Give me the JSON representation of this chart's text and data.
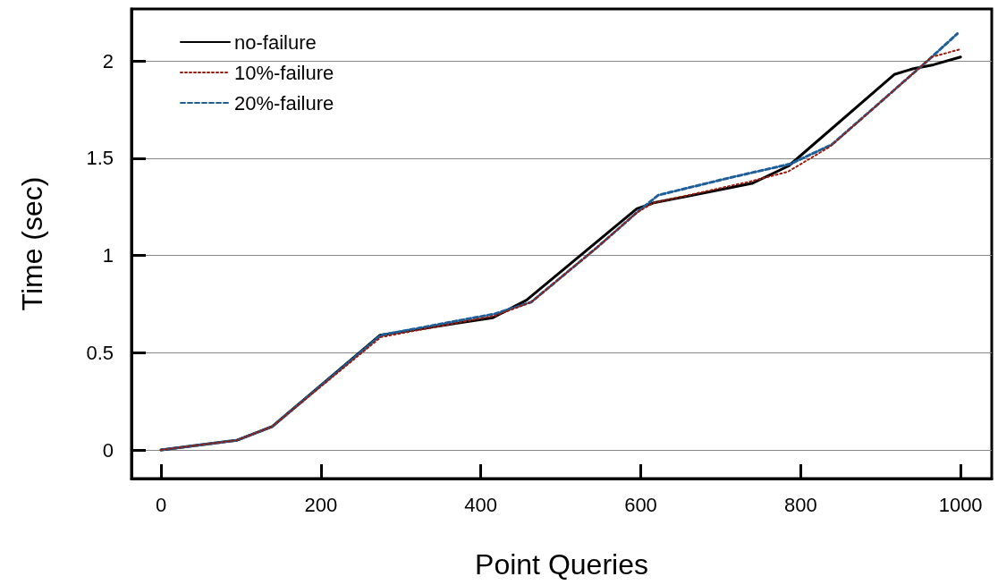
{
  "chart_data": {
    "type": "line",
    "xlabel": "Point Queries",
    "ylabel": "Time (sec)",
    "xlim": [
      -37,
      1039
    ],
    "xticks": [
      0,
      200,
      400,
      600,
      800,
      1000
    ],
    "ylim": [
      -0.147,
      2.267
    ],
    "yticks": [
      0,
      0.5,
      1,
      1.5,
      2
    ],
    "grid": "y",
    "legend": "top left",
    "marker": "none",
    "series": [
      {
        "name": "no-failure",
        "color": "#000000",
        "line_style": "solid",
        "x": [
          0,
          95,
          139,
          274,
          415,
          457,
          595,
          616,
          739,
          785,
          917,
          941,
          966,
          1000
        ],
        "values": [
          0,
          0.05,
          0.12,
          0.59,
          0.68,
          0.77,
          1.24,
          1.27,
          1.37,
          1.46,
          1.93,
          1.96,
          1.98,
          2.02
        ]
      },
      {
        "name": "10%-failure",
        "color": "#9b1c0c",
        "line_style": "dotted",
        "x": [
          0,
          95,
          139,
          275,
          418,
          463,
          545,
          595,
          616,
          737,
          784,
          837,
          917,
          964,
          1000
        ],
        "values": [
          0,
          0.05,
          0.12,
          0.58,
          0.69,
          0.76,
          1.04,
          1.22,
          1.27,
          1.38,
          1.43,
          1.56,
          1.85,
          2.02,
          2.06
        ]
      },
      {
        "name": "20%-failure",
        "color": "#1f5f99",
        "line_style": "dashed",
        "x": [
          0,
          95,
          139,
          275,
          418,
          463,
          545,
          595,
          622,
          712,
          787,
          839,
          917,
          964,
          996
        ],
        "values": [
          0,
          0.05,
          0.12,
          0.59,
          0.7,
          0.76,
          1.04,
          1.22,
          1.31,
          1.4,
          1.47,
          1.57,
          1.85,
          2.02,
          2.14
        ]
      }
    ]
  }
}
